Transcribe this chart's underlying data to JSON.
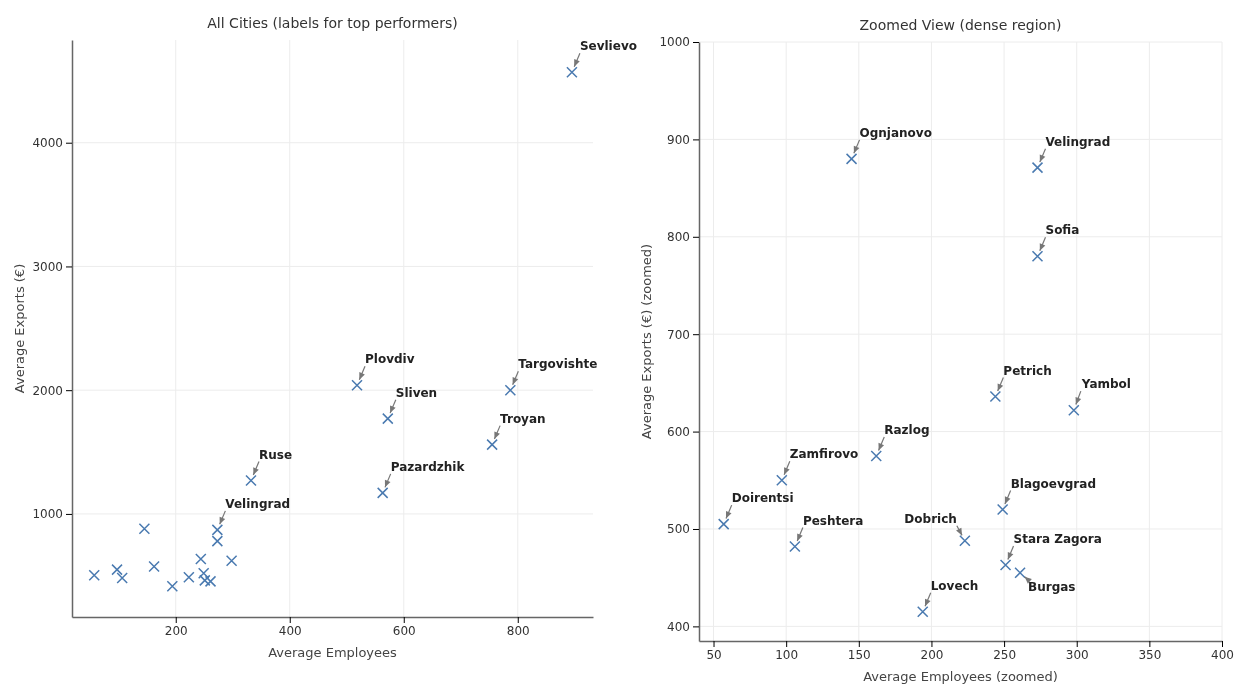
{
  "chart_data": [
    {
      "type": "scatter",
      "title": "All Cities (labels for top performers)",
      "xlabel": "Average Employees",
      "ylabel": "Average Exports (€)",
      "x": [
        57,
        97,
        106,
        145,
        162,
        194,
        223,
        244,
        249,
        251,
        261,
        273,
        273,
        298,
        332,
        518,
        563,
        572,
        755,
        787,
        895
      ],
      "series": [
        {
          "color": "#4a7ab0",
          "values": [
            505,
            550,
            482,
            880,
            575,
            415,
            488,
            636,
            520,
            463,
            455,
            871,
            780,
            622,
            1270,
            2040,
            1170,
            1770,
            1560,
            2000,
            4570
          ]
        }
      ],
      "xlim": [
        18,
        932
      ],
      "ylim": [
        167,
        4830
      ],
      "xticks": [
        200,
        400,
        600,
        800
      ],
      "yticks": [
        1000,
        2000,
        3000,
        4000
      ],
      "grid": true,
      "marker": "cross",
      "annotations": [
        {
          "text": "Sevlievo",
          "x": 895,
          "y": 4570
        },
        {
          "text": "Plovdiv",
          "x": 518,
          "y": 2040
        },
        {
          "text": "Targovishte",
          "x": 787,
          "y": 2000
        },
        {
          "text": "Sliven",
          "x": 572,
          "y": 1770
        },
        {
          "text": "Troyan",
          "x": 755,
          "y": 1560
        },
        {
          "text": "Ruse",
          "x": 332,
          "y": 1270
        },
        {
          "text": "Pazardzhik",
          "x": 563,
          "y": 1170
        },
        {
          "text": "Velingrad",
          "x": 273,
          "y": 871
        }
      ]
    },
    {
      "type": "scatter",
      "title": "Zoomed View (dense region)",
      "xlabel": "Average Employees (zoomed)",
      "ylabel": "Average Exports (€) (zoomed)",
      "x": [
        57,
        97,
        106,
        145,
        162,
        194,
        223,
        244,
        249,
        251,
        261,
        273,
        273,
        298
      ],
      "series": [
        {
          "color": "#4a7ab0",
          "values": [
            505,
            550,
            482,
            880,
            575,
            415,
            488,
            636,
            520,
            463,
            455,
            871,
            780,
            622
          ]
        }
      ],
      "xlim": [
        40,
        400
      ],
      "ylim": [
        385,
        1000
      ],
      "xticks": [
        50,
        100,
        150,
        200,
        250,
        300,
        350,
        400
      ],
      "yticks": [
        400,
        500,
        600,
        700,
        800,
        900,
        1000
      ],
      "grid": true,
      "marker": "cross",
      "annotations": [
        {
          "text": "Ognjanovo",
          "x": 145,
          "y": 880
        },
        {
          "text": "Sofia",
          "x": 273,
          "y": 780
        },
        {
          "text": "Velingrad",
          "x": 273,
          "y": 871
        },
        {
          "text": "Petrich",
          "x": 244,
          "y": 636
        },
        {
          "text": "Razlog",
          "x": 162,
          "y": 575
        },
        {
          "text": "Yambol",
          "x": 298,
          "y": 622
        },
        {
          "text": "Blagoevgrad",
          "x": 249,
          "y": 520
        },
        {
          "text": "Zamfirovo",
          "x": 97,
          "y": 550
        },
        {
          "text": "Doirentsi",
          "x": 57,
          "y": 505
        },
        {
          "text": "Peshtera",
          "x": 106,
          "y": 482
        },
        {
          "text": "Lovech",
          "x": 194,
          "y": 415
        },
        {
          "text": "Dobrich",
          "x": 223,
          "y": 488
        },
        {
          "text": "Stara Zagora",
          "x": 251,
          "y": 463
        },
        {
          "text": "Burgas",
          "x": 261,
          "y": 455
        }
      ]
    }
  ]
}
